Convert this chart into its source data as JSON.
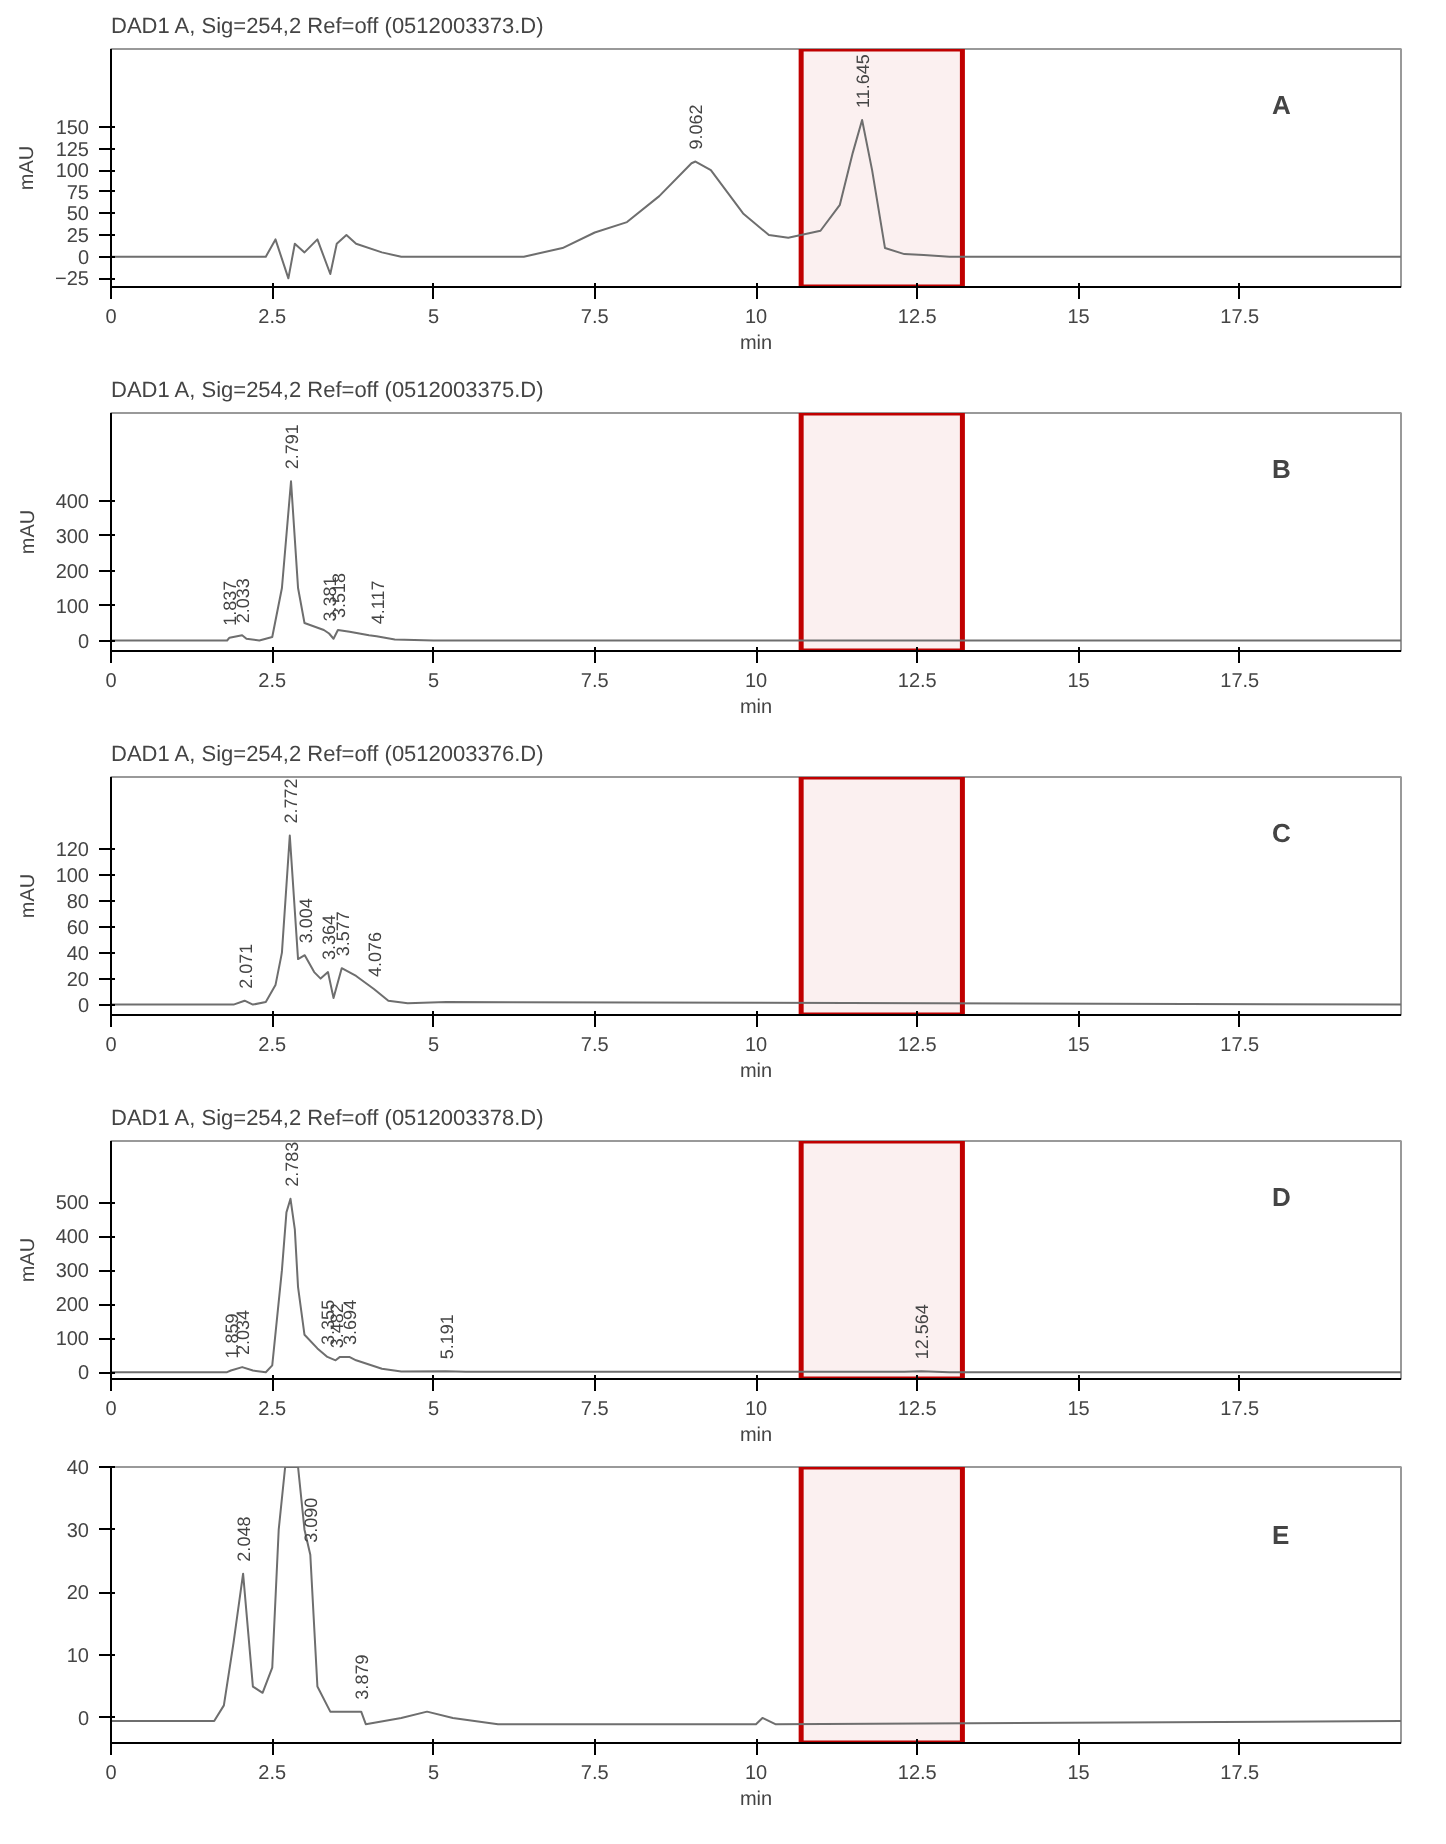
{
  "chart_data": [
    {
      "type": "line",
      "title": "DAD1 A, Sig=254,2 Ref=off (0512003373.D)",
      "xlabel": "min",
      "ylabel": "mAU",
      "xlim": [
        0,
        20
      ],
      "xticks": [
        0,
        2.5,
        5,
        7.5,
        10,
        12.5,
        15,
        17.5
      ],
      "ylim": [
        -35,
        240
      ],
      "yticks": [
        -25,
        0,
        25,
        50,
        75,
        100,
        125,
        150
      ],
      "grid": false,
      "series": [
        {
          "color": "#6e6e6e",
          "x": [
            0,
            2.4,
            2.55,
            2.75,
            2.85,
            3.0,
            3.2,
            3.4,
            3.5,
            3.65,
            3.8,
            4.2,
            4.5,
            6.4,
            7.0,
            7.5,
            8.0,
            8.5,
            9.0,
            9.062,
            9.3,
            9.8,
            10.2,
            10.5,
            11.0,
            11.3,
            11.5,
            11.645,
            11.8,
            12.0,
            12.3,
            12.6,
            13.0,
            20
          ],
          "values": [
            0,
            0,
            20,
            -25,
            15,
            5,
            20,
            -20,
            15,
            25,
            15,
            5,
            0,
            0,
            10,
            28,
            40,
            70,
            108,
            110,
            100,
            50,
            25,
            22,
            30,
            60,
            120,
            158,
            100,
            10,
            3,
            2,
            0,
            0
          ]
        }
      ],
      "annotations": [
        "A",
        {
          "text": "9.062",
          "x": 9.062,
          "y": 110
        },
        {
          "text": "11.645",
          "x": 11.645,
          "y": 158
        }
      ],
      "bands": [
        {
          "axis": "x",
          "from": 10.7,
          "to": 13.2,
          "color": "#c00000"
        }
      ]
    },
    {
      "type": "line",
      "title": "DAD1 A, Sig=254,2 Ref=off (0512003375.D)",
      "xlabel": "min",
      "ylabel": "mAU",
      "xlim": [
        0,
        20
      ],
      "xticks": [
        0,
        2.5,
        5,
        7.5,
        10,
        12.5,
        15,
        17.5
      ],
      "ylim": [
        -30,
        650
      ],
      "yticks": [
        0,
        100,
        200,
        300,
        400
      ],
      "grid": false,
      "series": [
        {
          "color": "#6e6e6e",
          "x": [
            0,
            1.8,
            1.837,
            2.033,
            2.1,
            2.3,
            2.5,
            2.65,
            2.791,
            2.9,
            3.0,
            3.3,
            3.381,
            3.45,
            3.518,
            3.7,
            4.0,
            4.117,
            4.4,
            5,
            20
          ],
          "values": [
            0,
            0,
            8,
            15,
            5,
            0,
            10,
            150,
            455,
            150,
            50,
            30,
            20,
            5,
            30,
            25,
            15,
            12,
            3,
            0,
            0
          ]
        }
      ],
      "annotations": [
        "B",
        {
          "text": "1.837",
          "x": 1.837,
          "y": 8
        },
        {
          "text": "2.033",
          "x": 2.033,
          "y": 15
        },
        {
          "text": "2.791",
          "x": 2.791,
          "y": 455
        },
        {
          "text": "3.381",
          "x": 3.381,
          "y": 20
        },
        {
          "text": "3.518",
          "x": 3.518,
          "y": 30
        },
        {
          "text": "4.117",
          "x": 4.117,
          "y": 12
        }
      ],
      "bands": [
        {
          "axis": "x",
          "from": 10.7,
          "to": 13.2,
          "color": "#c00000"
        }
      ]
    },
    {
      "type": "line",
      "title": "DAD1 A, Sig=254,2 Ref=off (0512003376.D)",
      "xlabel": "min",
      "ylabel": "mAU",
      "xlim": [
        0,
        20
      ],
      "xticks": [
        0,
        2.5,
        5,
        7.5,
        10,
        12.5,
        15,
        17.5
      ],
      "ylim": [
        -8,
        175
      ],
      "yticks": [
        0,
        20,
        40,
        60,
        80,
        100,
        120
      ],
      "grid": false,
      "series": [
        {
          "color": "#6e6e6e",
          "x": [
            0,
            1.9,
            2.071,
            2.2,
            2.4,
            2.55,
            2.65,
            2.772,
            2.9,
            3.004,
            3.15,
            3.25,
            3.364,
            3.45,
            3.577,
            3.8,
            4.076,
            4.3,
            4.6,
            5.2,
            20
          ],
          "values": [
            0,
            0,
            3,
            0,
            2,
            15,
            40,
            130,
            35,
            38,
            25,
            20,
            25,
            5,
            28,
            22,
            12,
            3,
            1,
            2,
            0
          ]
        }
      ],
      "annotations": [
        "C",
        {
          "text": "2.071",
          "x": 2.071,
          "y": 3
        },
        {
          "text": "2.772",
          "x": 2.772,
          "y": 130
        },
        {
          "text": "3.004",
          "x": 3.004,
          "y": 38
        },
        {
          "text": "3.364",
          "x": 3.364,
          "y": 25
        },
        {
          "text": "3.577",
          "x": 3.577,
          "y": 28
        },
        {
          "text": "4.076",
          "x": 4.076,
          "y": 12
        }
      ],
      "bands": [
        {
          "axis": "x",
          "from": 10.7,
          "to": 13.2,
          "color": "#c00000"
        }
      ]
    },
    {
      "type": "line",
      "title": "DAD1 A, Sig=254,2 Ref=off (0512003378.D)",
      "xlabel": "min",
      "ylabel": "mAU",
      "xlim": [
        0,
        20
      ],
      "xticks": [
        0,
        2.5,
        5,
        7.5,
        10,
        12.5,
        15,
        17.5
      ],
      "ylim": [
        -20,
        680
      ],
      "yticks": [
        0,
        100,
        200,
        300,
        400,
        500
      ],
      "grid": false,
      "series": [
        {
          "color": "#6e6e6e",
          "x": [
            0,
            1.8,
            1.859,
            2.034,
            2.2,
            2.4,
            2.5,
            2.65,
            2.72,
            2.783,
            2.85,
            2.9,
            3.0,
            3.2,
            3.355,
            3.482,
            3.55,
            3.694,
            3.8,
            4.2,
            4.5,
            5.191,
            5.5,
            12.3,
            12.564,
            13.0,
            20
          ],
          "values": [
            0,
            0,
            5,
            15,
            5,
            0,
            20,
            300,
            470,
            510,
            420,
            250,
            110,
            70,
            45,
            35,
            45,
            45,
            35,
            10,
            2,
            3,
            1,
            1,
            3,
            0,
            0
          ]
        }
      ],
      "annotations": [
        "D",
        {
          "text": "1.859",
          "x": 1.859,
          "y": 5
        },
        {
          "text": "2.034",
          "x": 2.034,
          "y": 15
        },
        {
          "text": "2.783",
          "x": 2.783,
          "y": 510
        },
        {
          "text": "3.355",
          "x": 3.355,
          "y": 45
        },
        {
          "text": "3.482",
          "x": 3.482,
          "y": 35
        },
        {
          "text": "3.694",
          "x": 3.694,
          "y": 45
        },
        {
          "text": "5.191",
          "x": 5.191,
          "y": 3
        },
        {
          "text": "12.564",
          "x": 12.564,
          "y": 3
        }
      ],
      "bands": [
        {
          "axis": "x",
          "from": 10.7,
          "to": 13.2,
          "color": "#c00000"
        }
      ]
    },
    {
      "type": "line",
      "xlabel": "min",
      "xlim": [
        0,
        20
      ],
      "xticks": [
        0,
        2.5,
        5,
        7.5,
        10,
        12.5,
        15,
        17.5
      ],
      "ylim": [
        -4,
        40
      ],
      "yticks": [
        0,
        10,
        20,
        30,
        40
      ],
      "grid": false,
      "series": [
        {
          "color": "#6e6e6e",
          "x": [
            0,
            1.6,
            1.75,
            1.9,
            2.048,
            2.2,
            2.35,
            2.5,
            2.6,
            2.7,
            2.9,
            3.0,
            3.09,
            3.2,
            3.4,
            3.879,
            3.95,
            4.5,
            4.9,
            5.3,
            6,
            10,
            10.1,
            10.3,
            20
          ],
          "values": [
            -0.5,
            -0.5,
            2,
            12,
            23,
            5,
            4,
            8,
            30,
            40,
            40,
            30,
            26,
            5,
            1,
            1,
            -1,
            0,
            1,
            0,
            -1,
            -1,
            0,
            -1,
            -0.5
          ]
        }
      ],
      "annotations": [
        "E",
        {
          "text": "2.048",
          "x": 2.048,
          "y": 23
        },
        {
          "text": "3.090",
          "x": 3.09,
          "y": 26
        },
        {
          "text": "3.879",
          "x": 3.879,
          "y": 1
        }
      ],
      "bands": [
        {
          "axis": "x",
          "from": 10.7,
          "to": 13.2,
          "color": "#c00000"
        }
      ]
    }
  ]
}
